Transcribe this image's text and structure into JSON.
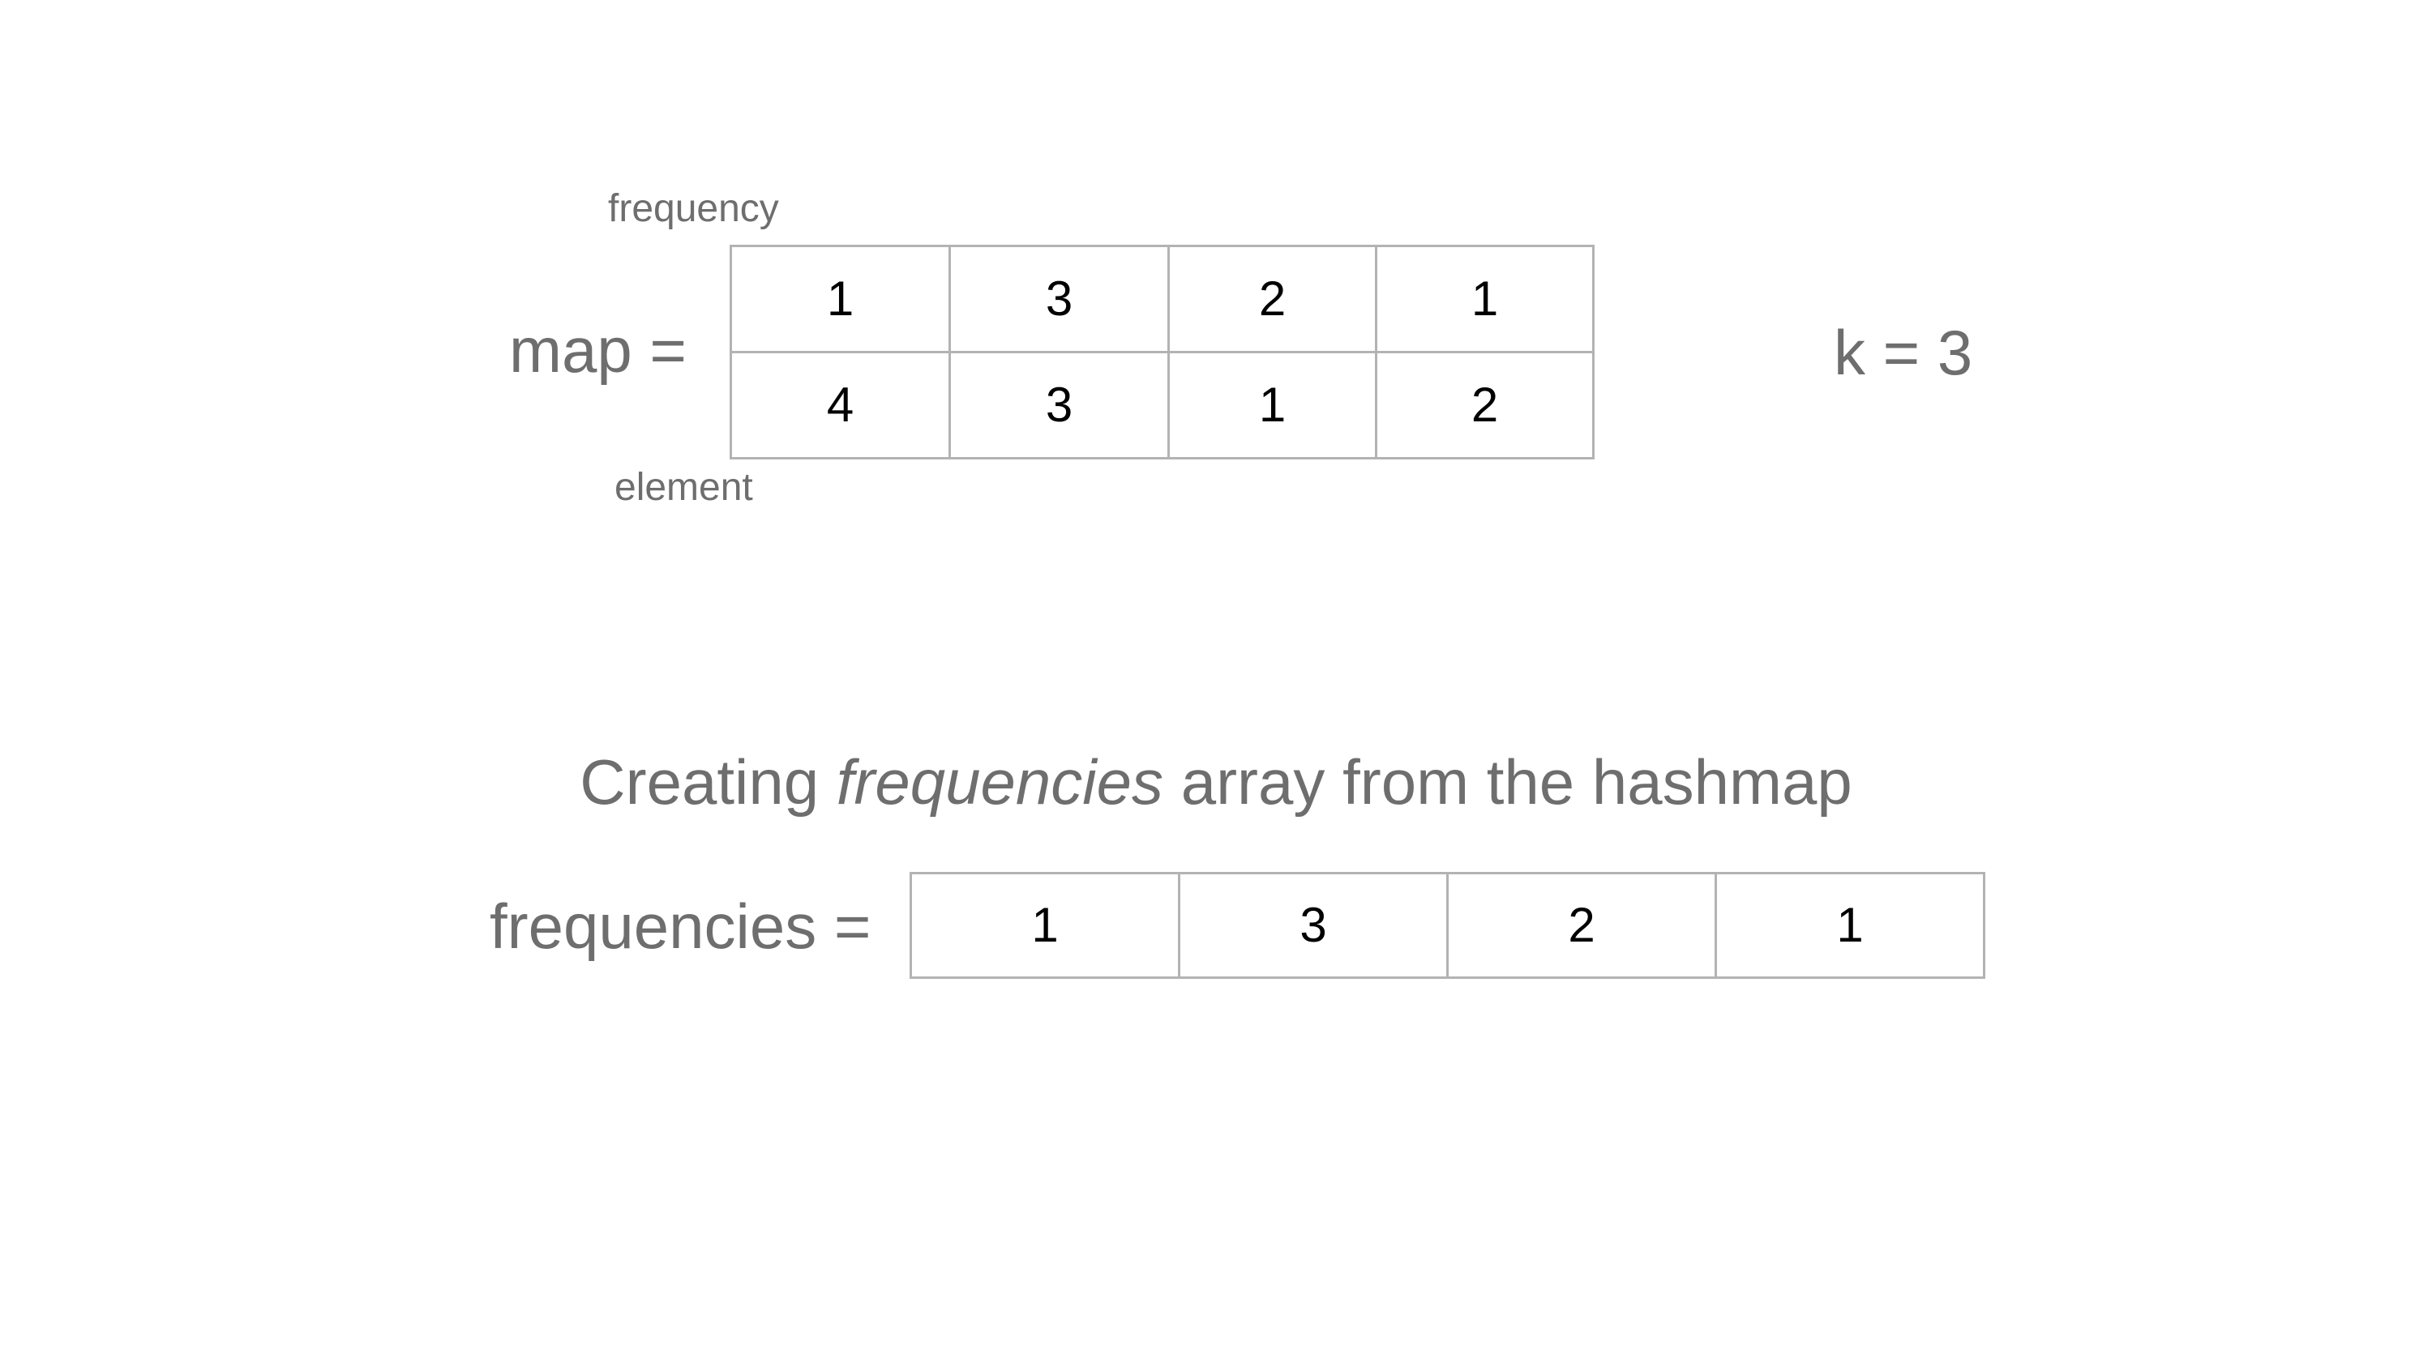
{
  "map_section": {
    "label": "map =",
    "row_label_top": "frequency",
    "row_label_bottom": "element",
    "frequency_row": [
      "1",
      "3",
      "2",
      "1"
    ],
    "element_row": [
      "4",
      "3",
      "1",
      "2"
    ]
  },
  "k_label": "k = 3",
  "caption": {
    "before": "Creating ",
    "emphasis": "frequencies",
    "after": " array from the hashmap"
  },
  "frequencies_section": {
    "label": "frequencies =",
    "values": [
      "1",
      "3",
      "2",
      "1"
    ]
  }
}
